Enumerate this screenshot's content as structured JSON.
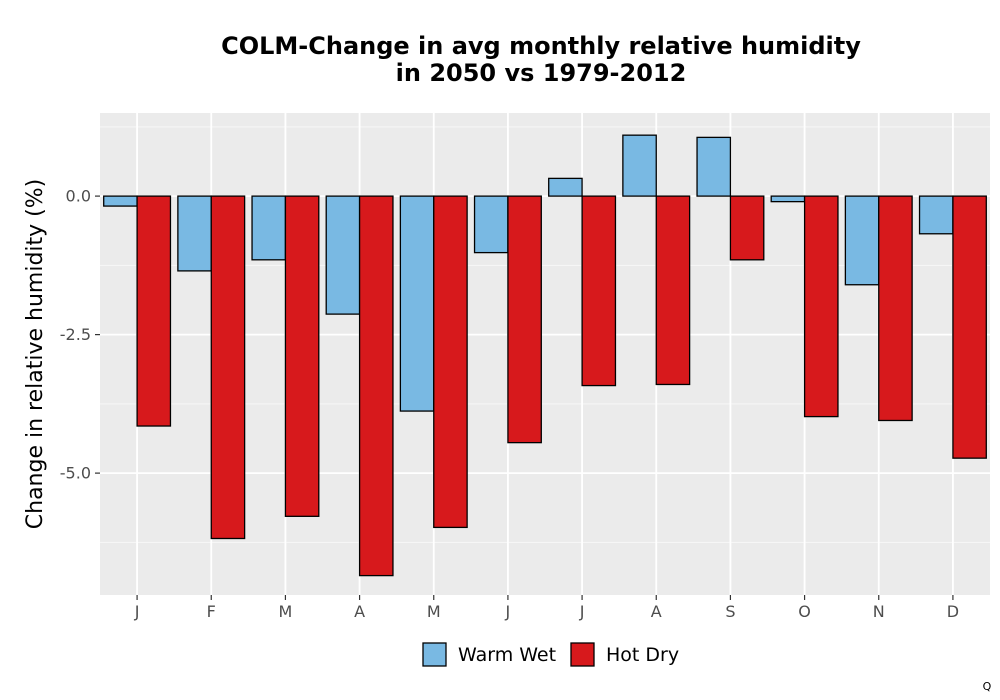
{
  "chart_data": {
    "type": "bar",
    "title_line1": "COLM-Change in avg monthly relative humidity",
    "title_line2": "in 2050 vs 1979-2012",
    "xlabel": "",
    "ylabel": "Change in relative humidity (%)",
    "categories": [
      "J",
      "F",
      "M",
      "A",
      "M",
      "J",
      "J",
      "A",
      "S",
      "O",
      "N",
      "D"
    ],
    "series": [
      {
        "name": "Warm Wet",
        "color": "#79b9e3",
        "values": [
          -0.18,
          -1.35,
          -1.15,
          -2.13,
          -3.88,
          -1.02,
          0.32,
          1.1,
          1.06,
          -0.1,
          -1.6,
          -0.68
        ]
      },
      {
        "name": "Hot Dry",
        "color": "#d7191c",
        "values": [
          -4.15,
          -6.18,
          -5.78,
          -6.85,
          -5.98,
          -4.45,
          -3.42,
          -3.4,
          -1.15,
          -3.98,
          -4.05,
          -4.73
        ]
      }
    ],
    "ylim": [
      -7.2,
      1.5
    ],
    "yticks": [
      0.0,
      -2.5,
      -5.0
    ],
    "ytick_labels": [
      "0.0",
      "-2.5",
      "-5.0"
    ],
    "grid": true,
    "legend_position": "bottom",
    "panel_background": "#ebebeb",
    "bar_outline": "#000000"
  },
  "corner_mark": "Q"
}
